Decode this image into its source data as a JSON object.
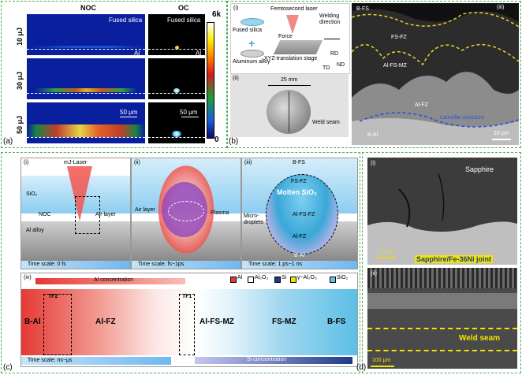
{
  "a": {
    "label": "(a)",
    "col_noc": "NOC",
    "col_oc": "OC",
    "rows": [
      "10 μJ",
      "30 μJ",
      "50 μJ"
    ],
    "fused_silica": "Fused silica",
    "al": "Al",
    "scale": "50 μm",
    "colorbar_top": "6k",
    "colorbar_bottom": "0"
  },
  "b": {
    "label": "(b)",
    "i": "(i)",
    "ii": "(ii)",
    "iii": "(iii)",
    "femtosecond_laser": "Femtosecond laser",
    "welding_direction": "Welding direction",
    "fused_silica": "Fused silica",
    "force": "Force",
    "aluminum_alloy": "Aluminum alloy",
    "stage": "XYZ-translation stage",
    "rd": "RD",
    "td": "TD",
    "nd": "ND",
    "scale_mm": "25 mm",
    "weld_seam": "Weld seam",
    "bfs": "B-FS",
    "fsfz": "FS-FZ",
    "alfsmz": "Al-FS-MZ",
    "alfz": "Al-FZ",
    "lamellar": "Lamellar structure",
    "bal": "B-Al",
    "scale_um": "10 μm"
  },
  "c": {
    "label": "(c)",
    "i": "(i)",
    "ii": "(ii)",
    "iii": "(iii)",
    "iv": "(iv)",
    "mj_laser": "mJ-Laser",
    "sio2": "SiO₂",
    "noc": "NOC",
    "air_layer": "Air layer",
    "al_alloy": "Al alloy",
    "ts1": "Time scale: 0 fs",
    "plasma": "Plasma",
    "ts2": "Time scale: fs~1ps",
    "bfs": "B-FS",
    "fsfz": "FS-FZ",
    "molten": "Molten SiO₂",
    "micro": "Micro-droplets",
    "alfsfz": "Al-FS-FZ",
    "alfz": "Al-FZ",
    "bal": "B-Al",
    "ts3": "Time scale: 1 ps~1 ns",
    "al_conc": "Al concentration",
    "si_conc": "Si concentration",
    "legend": [
      "Al",
      "Al₂O₃",
      "Si",
      "γ−Al₂O₃",
      "SiO₂"
    ],
    "legend_colors": [
      "#e53935",
      "#ffffff",
      "#1e3a8a",
      "#f2e600",
      "#64c3ec"
    ],
    "tf2": "TF2",
    "tf1": "TF1",
    "bal2": "B-Al",
    "alfz2": "Al-FZ",
    "alfsmz": "Al-FS-MZ",
    "fsmz": "FS-MZ",
    "bfs2": "B-FS",
    "ts4": "Time scale: ns~μs"
  },
  "d": {
    "label": "(d)",
    "i": "(i)",
    "ii": "(ii)",
    "sapphire": "Sapphire",
    "scale1": "20 μm",
    "joint": "Sapphire/Fe-36Ni joint",
    "weld_seam": "Weld seam",
    "scale2": "100 μm"
  }
}
